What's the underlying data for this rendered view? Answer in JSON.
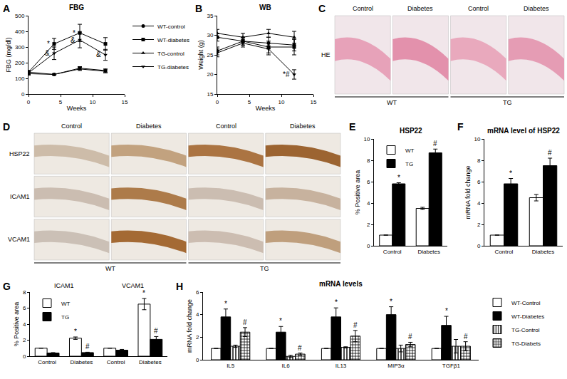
{
  "chart_data": [
    {
      "panel": "A",
      "type": "line",
      "title": "FBG",
      "x_label": "Weeks",
      "y_label": "FBG (mg/dl)",
      "x": [
        0,
        4,
        8,
        12
      ],
      "xlim": [
        0,
        15
      ],
      "xticks": [
        0,
        5,
        10,
        15
      ],
      "ylim": [
        0,
        500
      ],
      "yticks": [
        0,
        100,
        200,
        300,
        400,
        500
      ],
      "legend": "right",
      "series": [
        {
          "name": "WT-control",
          "color": "#000000",
          "marker": "circle",
          "values": [
            140,
            125,
            165,
            150
          ],
          "errors": [
            10,
            5,
            10,
            10
          ]
        },
        {
          "name": "WT-diabetes",
          "color": "#000000",
          "marker": "square",
          "values": [
            140,
            320,
            390,
            320
          ],
          "errors": [
            10,
            35,
            55,
            40
          ]
        },
        {
          "name": "TG-control",
          "color": "#000000",
          "marker": "triangle-up",
          "values": [
            130,
            125,
            160,
            145
          ],
          "errors": [
            10,
            5,
            10,
            10
          ]
        },
        {
          "name": "TG-diabetes",
          "color": "#000000",
          "marker": "triangle-down",
          "values": [
            135,
            260,
            345,
            250
          ],
          "errors": [
            10,
            40,
            50,
            35
          ]
        }
      ],
      "annotations": [
        {
          "text": "*",
          "series": 1,
          "x": 4
        },
        {
          "text": "*",
          "series": 1,
          "x": 8
        },
        {
          "text": "&",
          "series": 3,
          "x": 4
        },
        {
          "text": "&",
          "series": 3,
          "x": 8
        },
        {
          "text": "&",
          "series": 3,
          "x": 12
        }
      ]
    },
    {
      "panel": "B",
      "type": "line",
      "title": "WB",
      "x_label": "Weeks",
      "y_label": "Weight (g)",
      "x": [
        0,
        4,
        8,
        12
      ],
      "xlim": [
        0,
        15
      ],
      "xticks": [
        0,
        5,
        10,
        15
      ],
      "ylim": [
        15,
        35
      ],
      "yticks": [
        15,
        20,
        25,
        30,
        35
      ],
      "series": [
        {
          "color": "#000000",
          "marker": "circle",
          "values": [
            26,
            28.5,
            28,
            27.5
          ],
          "errors": [
            1,
            1,
            1.5,
            1.5
          ]
        },
        {
          "color": "#000000",
          "marker": "square",
          "values": [
            29.5,
            28.5,
            27,
            27
          ],
          "errors": [
            1,
            1,
            1.5,
            2
          ]
        },
        {
          "color": "#000000",
          "marker": "triangle-up",
          "values": [
            30.5,
            29.5,
            30.5,
            29.5
          ],
          "errors": [
            1,
            1,
            1,
            1.5
          ]
        },
        {
          "color": "#000000",
          "marker": "triangle-down",
          "values": [
            25.5,
            28,
            26.5,
            20
          ],
          "errors": [
            1,
            1,
            1.5,
            1.2
          ]
        }
      ],
      "annotations": [
        {
          "text": "*#",
          "series": 3,
          "x": 12
        }
      ]
    },
    {
      "panel": "E",
      "type": "bar",
      "title": "HSP22",
      "y_label": "% Positive area",
      "categories": [
        "Control",
        "Diabetes"
      ],
      "ylim": [
        0,
        10
      ],
      "yticks": [
        0,
        2,
        4,
        6,
        8,
        10
      ],
      "legend": "top left",
      "series": [
        {
          "name": "WT",
          "color": "#ffffff",
          "values": [
            1,
            3.5
          ],
          "errors": [
            0,
            0.1
          ]
        },
        {
          "name": "TG",
          "color": "#000000",
          "values": [
            5.8,
            8.7
          ],
          "errors": [
            0.1,
            0.35
          ]
        }
      ],
      "annotations": [
        {
          "text": "*",
          "series": 1,
          "category": 0
        },
        {
          "text": "#",
          "series": 1,
          "category": 1
        }
      ]
    },
    {
      "panel": "F",
      "type": "bar",
      "title": "mRNA level of HSP22",
      "y_label": "mRNA fold change",
      "categories": [
        "Control",
        "Diabetes"
      ],
      "ylim": [
        0,
        10
      ],
      "yticks": [
        0,
        2,
        4,
        6,
        8,
        10
      ],
      "series": [
        {
          "color": "#ffffff",
          "values": [
            1,
            4.5
          ],
          "errors": [
            0,
            0.3
          ]
        },
        {
          "color": "#000000",
          "values": [
            5.8,
            7.5
          ],
          "errors": [
            0.5,
            0.7
          ]
        }
      ],
      "annotations": [
        {
          "text": "*",
          "series": 1,
          "category": 0
        },
        {
          "text": "#",
          "series": 1,
          "category": 1
        }
      ]
    },
    {
      "panel": "G",
      "type": "bar",
      "y_label": "% Positive area",
      "categories": [
        "Control",
        "Diabetes",
        "Control",
        "Diabetes"
      ],
      "group_labels": [
        "ICAM1",
        "VCAM1"
      ],
      "ylim": [
        0,
        8
      ],
      "yticks": [
        0,
        2,
        4,
        6,
        8
      ],
      "legend": "top left",
      "series": [
        {
          "name": "WT",
          "color": "#ffffff",
          "values": [
            1,
            2.25,
            1,
            6.5
          ],
          "errors": [
            0,
            0.15,
            0,
            0.7
          ]
        },
        {
          "name": "TG",
          "color": "#000000",
          "values": [
            0.4,
            0.45,
            0.75,
            2.1
          ],
          "errors": [
            0.05,
            0.05,
            0.1,
            0.35
          ]
        }
      ],
      "annotations": [
        {
          "text": "*",
          "series": 0,
          "category": 1
        },
        {
          "text": "#",
          "series": 1,
          "category": 1
        },
        {
          "text": "*",
          "series": 0,
          "category": 3
        },
        {
          "text": "#",
          "series": 1,
          "category": 3
        }
      ]
    },
    {
      "panel": "H",
      "type": "bar",
      "title": "mRNA levels",
      "y_label": "mRNA fold change",
      "categories": [
        "IL5",
        "IL6",
        "IL13",
        "MIP3α",
        "TGFβ1"
      ],
      "ylim": [
        0,
        6
      ],
      "yticks": [
        0,
        2,
        4,
        6
      ],
      "legend": "right",
      "series": [
        {
          "name": "WT-Control",
          "color": "#ffffff",
          "marker": "solid",
          "values": [
            1,
            1,
            1,
            1,
            1
          ],
          "errors": [
            0,
            0,
            0,
            0,
            0
          ]
        },
        {
          "name": "WT-Diabetes",
          "color": "#000000",
          "marker": "solid",
          "values": [
            3.8,
            2.45,
            3.8,
            4.0,
            3.05
          ],
          "errors": [
            0.7,
            0.5,
            0.8,
            0.7,
            0.8
          ]
        },
        {
          "name": "TG-Control",
          "color": "#ffffff",
          "marker": "vertical_stripes",
          "values": [
            1.2,
            0.3,
            1.1,
            1.0,
            1.2
          ],
          "errors": [
            0.1,
            0.1,
            0.05,
            0.3,
            0.6
          ]
        },
        {
          "name": "TG-Diabets",
          "color": "#ffffff",
          "marker": "checkered",
          "values": [
            2.45,
            0.5,
            2.1,
            1.35,
            1.2
          ],
          "errors": [
            0.4,
            0.1,
            0.5,
            0.2,
            0.4
          ]
        }
      ],
      "annotations": [
        {
          "text": "*",
          "series": 1,
          "category": 0
        },
        {
          "text": "#",
          "series": 3,
          "category": 0
        },
        {
          "text": "*",
          "series": 1,
          "category": 1
        },
        {
          "text": "#",
          "series": 3,
          "category": 1
        },
        {
          "text": "*",
          "series": 1,
          "category": 2
        },
        {
          "text": "#",
          "series": 3,
          "category": 2
        },
        {
          "text": "*",
          "series": 1,
          "category": 3
        },
        {
          "text": "#",
          "series": 3,
          "category": 3
        },
        {
          "text": "*",
          "series": 1,
          "category": 4
        },
        {
          "text": "#",
          "series": 3,
          "category": 4
        }
      ]
    }
  ],
  "image_panels": [
    {
      "panel": "C",
      "row_labels": [
        "HE"
      ],
      "column_labels": [
        "Control",
        "Diabetes",
        "Control",
        "Diabetes"
      ],
      "group_labels": [
        "WT",
        "TG"
      ]
    },
    {
      "panel": "D",
      "row_labels": [
        "HSP22",
        "ICAM1",
        "VCAM1"
      ],
      "column_labels": [
        "Control",
        "Diabetes",
        "Control",
        "Diabetes"
      ],
      "group_labels": [
        "WT",
        "TG"
      ]
    }
  ]
}
